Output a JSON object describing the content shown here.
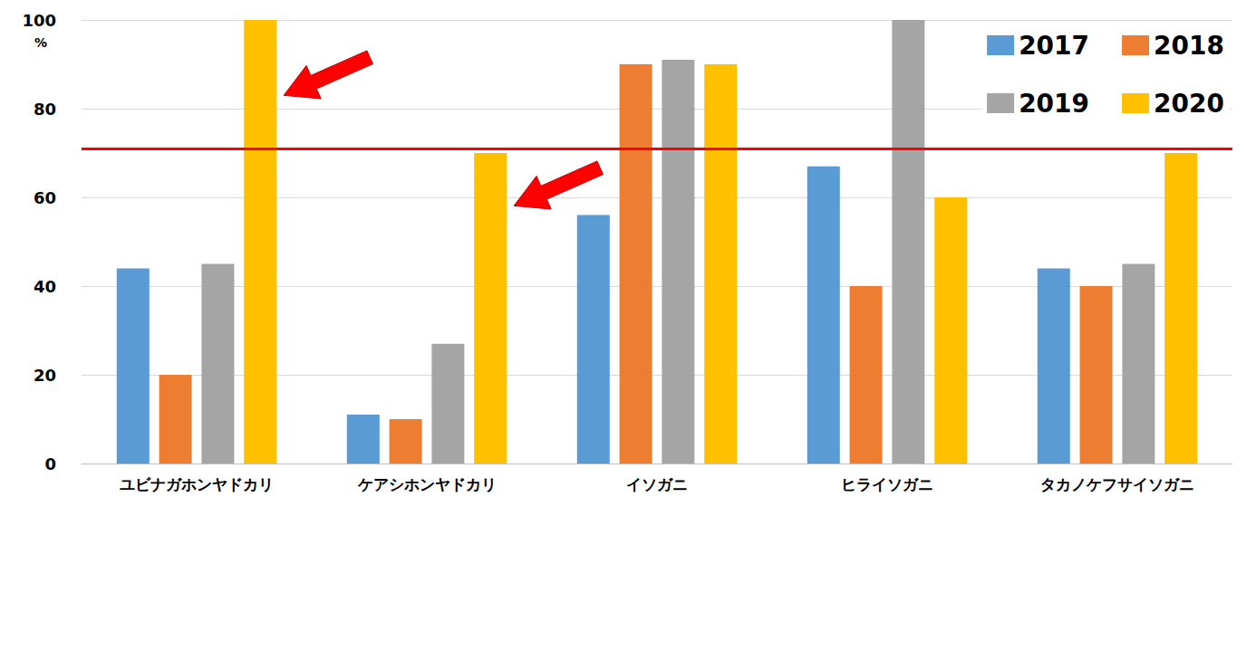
{
  "chart_data": {
    "type": "bar",
    "categories": [
      "ユビナガホンヤドカリ",
      "ケアシホンヤドカリ",
      "イソガニ",
      "ヒライソガニ",
      "タカノケフサイソガニ"
    ],
    "series": [
      {
        "name": "2017",
        "color": "#5B9BD5",
        "values": [
          44,
          11,
          56,
          67,
          44
        ]
      },
      {
        "name": "2018",
        "color": "#ED7D31",
        "values": [
          20,
          10,
          90,
          40,
          40
        ]
      },
      {
        "name": "2019",
        "color": "#A5A5A5",
        "values": [
          45,
          27,
          91,
          100,
          45
        ]
      },
      {
        "name": "2020",
        "color": "#FFC000",
        "values": [
          100,
          70,
          90,
          60,
          70
        ]
      }
    ],
    "ylim": [
      0,
      100
    ],
    "yticks": [
      0,
      20,
      40,
      60,
      80,
      100
    ],
    "ylabel": "%",
    "threshold": 71,
    "grid": true,
    "legend": "upper right"
  }
}
